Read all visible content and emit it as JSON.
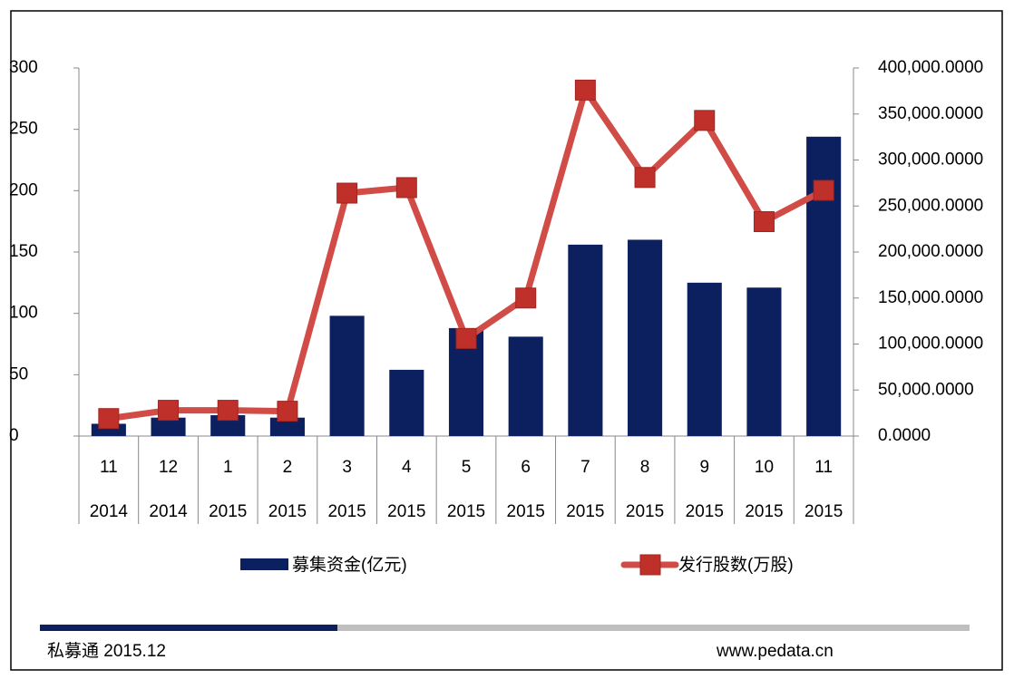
{
  "chart_data": {
    "type": "bar_line",
    "categories": [
      "11",
      "12",
      "1",
      "2",
      "3",
      "4",
      "5",
      "6",
      "7",
      "8",
      "9",
      "10",
      "11"
    ],
    "years": [
      "2014",
      "2014",
      "2015",
      "2015",
      "2015",
      "2015",
      "2015",
      "2015",
      "2015",
      "2015",
      "2015",
      "2015",
      "2015"
    ],
    "series": [
      {
        "name": "募集资金(亿元)",
        "type": "bar",
        "color": "#0c1f5e",
        "values": [
          10,
          15,
          17,
          15,
          98,
          54,
          88,
          81,
          156,
          160,
          125,
          121,
          244
        ]
      },
      {
        "name": "发行股数(万股)",
        "type": "line",
        "axis": "y2",
        "color": "#d14c47",
        "marker_color": "#c0302b",
        "values": [
          19000,
          28000,
          28000,
          27000,
          264000,
          270000,
          106000,
          150000,
          376000,
          281000,
          343000,
          233000,
          267000
        ]
      }
    ],
    "ylim": [
      0,
      300
    ],
    "yticks": [
      0,
      50,
      100,
      150,
      200,
      250,
      300
    ],
    "y2lim": [
      0,
      400000
    ],
    "y2ticks": [
      {
        "value": 0,
        "label": "0.0000"
      },
      {
        "value": 50000,
        "label": "50,000.0000"
      },
      {
        "value": 100000,
        "label": "100,000.0000"
      },
      {
        "value": 150000,
        "label": "150,000.0000"
      },
      {
        "value": 200000,
        "label": "200,000.0000"
      },
      {
        "value": 250000,
        "label": "250,000.0000"
      },
      {
        "value": 300000,
        "label": "300,000.0000"
      },
      {
        "value": 350000,
        "label": "350,000.0000"
      },
      {
        "value": 400000,
        "label": "400,000.0000"
      }
    ],
    "footer_left": "私募通 2015.12",
    "footer_right": "www.pedata.cn"
  }
}
